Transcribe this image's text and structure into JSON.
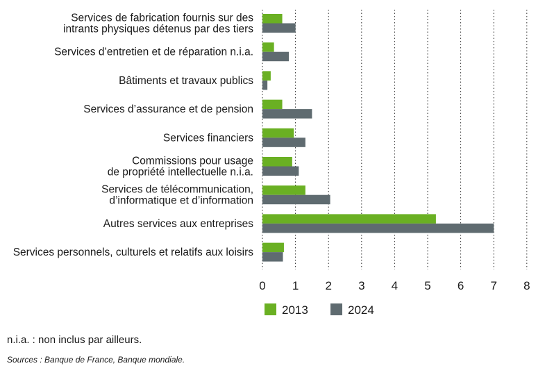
{
  "chart_data": {
    "type": "bar",
    "orientation": "horizontal",
    "categories": [
      [
        "Services de fabrication fournis sur des",
        "intrants physiques détenus par des tiers"
      ],
      [
        "Services d’entretien et de réparation n.i.a."
      ],
      [
        "Bâtiments et travaux publics"
      ],
      [
        "Services d’assurance et de pension"
      ],
      [
        "Services financiers"
      ],
      [
        "Commissions pour usage",
        "de propriété intellectuelle n.i.a."
      ],
      [
        "Services de télécommunication,",
        "d’informatique et d’information"
      ],
      [
        "Autres services aux entreprises"
      ],
      [
        "Services personnels, culturels et relatifs aux loisirs"
      ]
    ],
    "series": [
      {
        "name": "2013",
        "color": "#6ab023",
        "values": [
          0.6,
          0.35,
          0.25,
          0.6,
          0.95,
          0.9,
          1.3,
          5.25,
          0.65
        ]
      },
      {
        "name": "2024",
        "color": "#5f6b70",
        "values": [
          1.0,
          0.8,
          0.15,
          1.5,
          1.3,
          1.1,
          2.05,
          7.0,
          0.62
        ]
      }
    ],
    "xlim": [
      0,
      8
    ],
    "xticks": [
      "0",
      "1",
      "2",
      "3",
      "4",
      "5",
      "6",
      "7",
      "8"
    ],
    "grid": "vertical",
    "legend_position": "bottom"
  },
  "note": "n.i.a. : non inclus par ailleurs.",
  "source": "Sources : Banque de France, Banque mondiale."
}
